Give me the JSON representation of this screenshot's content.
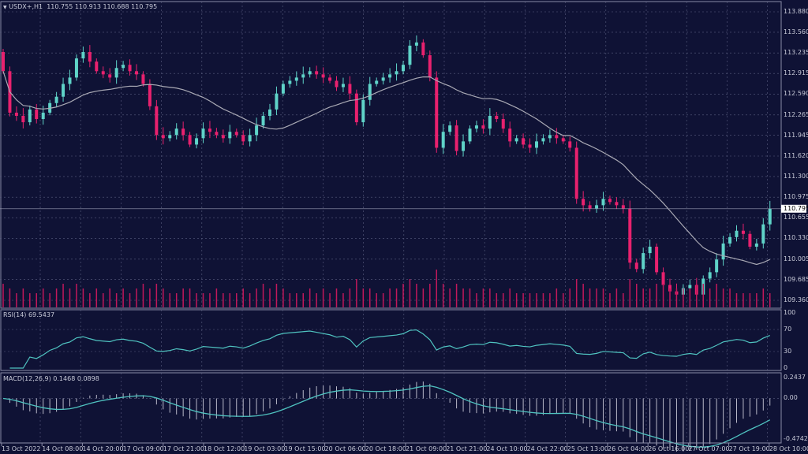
{
  "header": {
    "symbol_icon": "triangle-down-icon",
    "title": "USDX+,H1",
    "ohlc": "110.755 110.913 110.688 110.795"
  },
  "colors": {
    "background": "#0f1235",
    "grid": "#5a5e80",
    "bull": "#5fd3c8",
    "bear": "#e8216e",
    "ma": "#a9a9b4",
    "rsi": "#4fc3c0",
    "macd": "#4fc3c0",
    "volume": "#c2185b",
    "current_price_tag": "#ffffff"
  },
  "price_axis": {
    "min": 109.36,
    "max": 113.88,
    "ticks": [
      "113.880",
      "113.560",
      "113.235",
      "112.915",
      "112.590",
      "112.265",
      "111.945",
      "111.620",
      "111.300",
      "110.975",
      "110.655",
      "110.330",
      "110.005",
      "109.685",
      "109.360"
    ],
    "current": "110.795"
  },
  "time_axis": [
    "13 Oct 2022",
    "14 Oct 08:00",
    "14 Oct 20:00",
    "17 Oct 09:00",
    "17 Oct 21:00",
    "18 Oct 12:00",
    "19 Oct 03:00",
    "19 Oct 15:00",
    "20 Oct 06:00",
    "20 Oct 18:00",
    "21 Oct 09:00",
    "21 Oct 21:00",
    "24 Oct 10:00",
    "24 Oct 22:00",
    "25 Oct 13:00",
    "26 Oct 04:00",
    "26 Oct 16:00",
    "27 Oct 07:00",
    "27 Oct 19:00",
    "28 Oct 10:00"
  ],
  "closes": [
    112.95,
    112.3,
    112.25,
    112.15,
    112.35,
    112.2,
    112.3,
    112.45,
    112.55,
    112.75,
    112.85,
    113.15,
    113.25,
    113.1,
    112.95,
    112.9,
    112.85,
    113.0,
    113.05,
    112.95,
    112.9,
    112.75,
    112.4,
    111.95,
    111.9,
    111.95,
    112.05,
    111.95,
    111.8,
    111.9,
    112.05,
    112.0,
    111.95,
    111.9,
    112.0,
    111.95,
    111.85,
    111.95,
    112.1,
    112.25,
    112.35,
    112.6,
    112.75,
    112.8,
    112.85,
    112.9,
    112.95,
    112.9,
    112.85,
    112.8,
    112.7,
    112.75,
    112.6,
    112.15,
    112.5,
    112.75,
    112.8,
    112.85,
    112.9,
    112.95,
    113.05,
    113.35,
    113.4,
    113.2,
    112.85,
    111.75,
    112.0,
    112.1,
    111.7,
    111.85,
    112.05,
    112.1,
    112.05,
    112.25,
    112.2,
    112.05,
    111.85,
    111.9,
    111.8,
    111.75,
    111.85,
    111.9,
    111.95,
    111.9,
    111.85,
    111.75,
    110.95,
    110.85,
    110.8,
    110.85,
    110.95,
    110.9,
    110.85,
    110.8,
    109.95,
    109.85,
    110.1,
    110.2,
    109.8,
    109.6,
    109.5,
    109.45,
    109.55,
    109.6,
    109.45,
    109.7,
    109.8,
    110.0,
    110.25,
    110.35,
    110.45,
    110.4,
    110.2,
    110.25,
    110.55,
    110.795
  ],
  "first_open": 113.25,
  "volumes": [
    5,
    4,
    3,
    4,
    3,
    3,
    4,
    3,
    4,
    5,
    4,
    5,
    4,
    3,
    4,
    3,
    4,
    3,
    4,
    3,
    4,
    5,
    4,
    5,
    4,
    3,
    3,
    4,
    4,
    3,
    3,
    3,
    4,
    3,
    3,
    3,
    4,
    3,
    4,
    5,
    4,
    5,
    4,
    3,
    3,
    3,
    4,
    3,
    4,
    3,
    4,
    3,
    4,
    6,
    4,
    4,
    3,
    3,
    4,
    4,
    5,
    6,
    5,
    4,
    5,
    8,
    5,
    4,
    5,
    4,
    4,
    3,
    4,
    4,
    3,
    3,
    4,
    3,
    3,
    3,
    3,
    3,
    3,
    4,
    3,
    4,
    6,
    5,
    4,
    4,
    4,
    3,
    4,
    3,
    6,
    5,
    4,
    4,
    5,
    5,
    4,
    4,
    4,
    4,
    5,
    5,
    4,
    5,
    4,
    4,
    3,
    3,
    3,
    3,
    4,
    3
  ],
  "ma_period": 20,
  "rsi": {
    "label": "RSI(14) 69.5437",
    "levels": [
      "100",
      "70",
      "30",
      "0"
    ]
  },
  "macd": {
    "label": "MACD(12,26,9) 0.1468 0.0898",
    "ticks": [
      "0.2437",
      "0.00",
      "-0.4742"
    ]
  }
}
